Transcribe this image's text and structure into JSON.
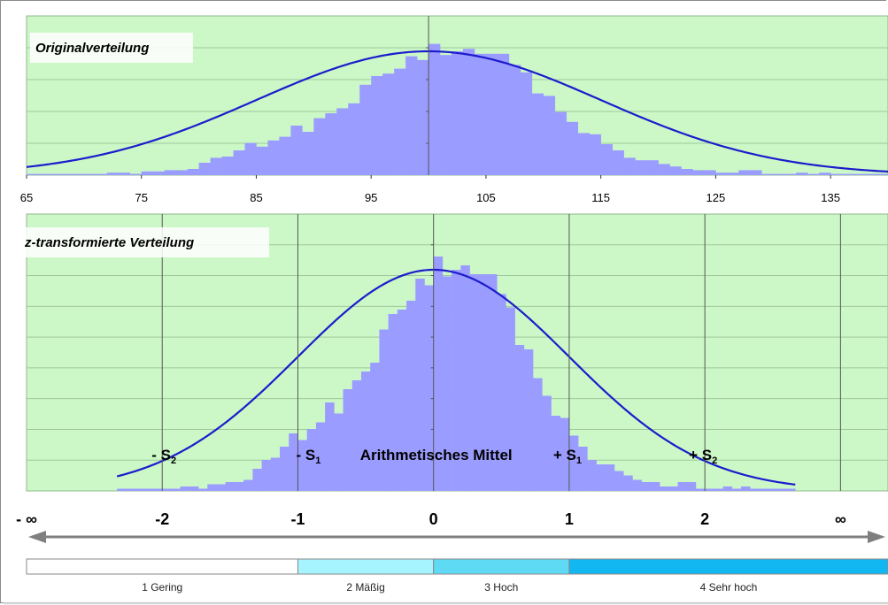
{
  "colors": {
    "plot_bg": "#ccf8c8",
    "bar": "#9b9cff",
    "curve": "#1c1ccc",
    "grid": "#9ec79a",
    "axis": "#777777"
  },
  "chart_data": [
    {
      "type": "bar",
      "title": "Originalverteilung",
      "x_ticks": [
        65,
        75,
        85,
        95,
        105,
        115,
        125,
        135
      ],
      "xlim": [
        65,
        140
      ],
      "ylim": [
        0,
        1
      ],
      "center": 100,
      "sd": 15,
      "bin_width": 1,
      "bins_start": 65,
      "heights": [
        0.01,
        0.01,
        0.01,
        0.01,
        0.01,
        0.01,
        0.01,
        0.02,
        0.02,
        0.01,
        0.03,
        0.03,
        0.04,
        0.04,
        0.05,
        0.1,
        0.14,
        0.15,
        0.2,
        0.26,
        0.23,
        0.28,
        0.31,
        0.4,
        0.35,
        0.46,
        0.5,
        0.54,
        0.58,
        0.73,
        0.8,
        0.82,
        0.86,
        0.96,
        0.93,
        1.06,
        0.97,
        1.0,
        1.02,
        0.98,
        0.98,
        0.98,
        0.89,
        0.83,
        0.66,
        0.64,
        0.51,
        0.43,
        0.34,
        0.33,
        0.25,
        0.2,
        0.14,
        0.12,
        0.12,
        0.09,
        0.07,
        0.05,
        0.04,
        0.04,
        0.02,
        0.02,
        0.04,
        0.04,
        0.01,
        0.01,
        0.01,
        0.02,
        0.01,
        0.02,
        0.01,
        0.01,
        0.01,
        0.01,
        0.01
      ],
      "series": [
        {
          "name": "",
          "type": "normal-curve",
          "mean": 100,
          "sd": 15
        }
      ],
      "grid": true
    },
    {
      "type": "bar",
      "title": "z-transformierte Verteilung",
      "x_ticks": [
        {
          "value": -3.0,
          "label": "- ∞"
        },
        {
          "value": -2,
          "label": "-2"
        },
        {
          "value": -1,
          "label": "-1"
        },
        {
          "value": 0,
          "label": "0"
        },
        {
          "value": 1,
          "label": "1"
        },
        {
          "value": 2,
          "label": "2"
        },
        {
          "value": 3.0,
          "label": "∞"
        }
      ],
      "xlim": [
        -3.0,
        3.35
      ],
      "ylim": [
        0,
        1
      ],
      "vlines": [
        -2,
        -1,
        0,
        1,
        2,
        3
      ],
      "grid": true,
      "annotations": [
        {
          "text": "- S",
          "sub": "2",
          "x": -2
        },
        {
          "text": "- S",
          "sub": "1",
          "x": -1
        },
        {
          "text": "Arithmetisches Mittel",
          "sub": "",
          "x": 0
        },
        {
          "text": "+ S",
          "sub": "1",
          "x": 1
        },
        {
          "text": "+ S",
          "sub": "2",
          "x": 2
        }
      ]
    }
  ],
  "categories": [
    {
      "num": "1",
      "label": "Gering",
      "color": "#ffffff"
    },
    {
      "num": "2",
      "label": "Mäßig",
      "color": "#a6f4ff"
    },
    {
      "num": "3",
      "label": "Hoch",
      "color": "#5edaf5"
    },
    {
      "num": "4",
      "label": "Sehr hoch",
      "color": "#12b7f2"
    }
  ]
}
